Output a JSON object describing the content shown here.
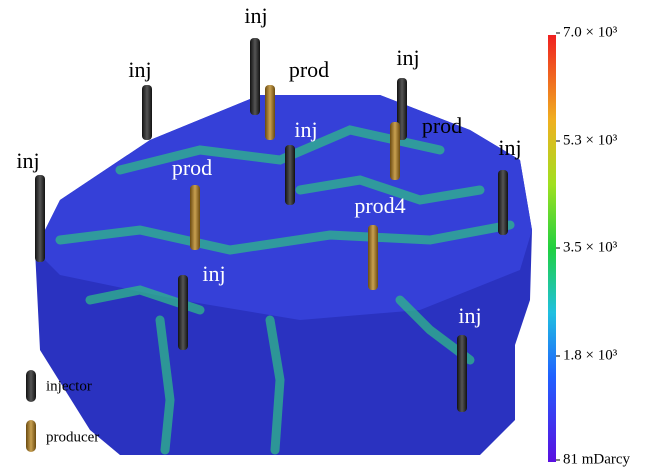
{
  "wells": [
    {
      "label": "inj"
    },
    {
      "label": "inj"
    },
    {
      "label": "inj"
    },
    {
      "label": "prod"
    },
    {
      "label": "inj"
    },
    {
      "label": "prod"
    },
    {
      "label": "inj"
    },
    {
      "label": "inj"
    },
    {
      "label": "prod"
    },
    {
      "label": "prod4"
    },
    {
      "label": "inj"
    },
    {
      "label": "inj"
    }
  ],
  "legend": {
    "items": [
      "injector",
      "producer"
    ]
  },
  "colorbar": {
    "labels": [
      "7.0 × 10³",
      "5.3 × 10³",
      "3.5 × 10³",
      "1.8 × 10³",
      "81 mDarcy"
    ]
  }
}
